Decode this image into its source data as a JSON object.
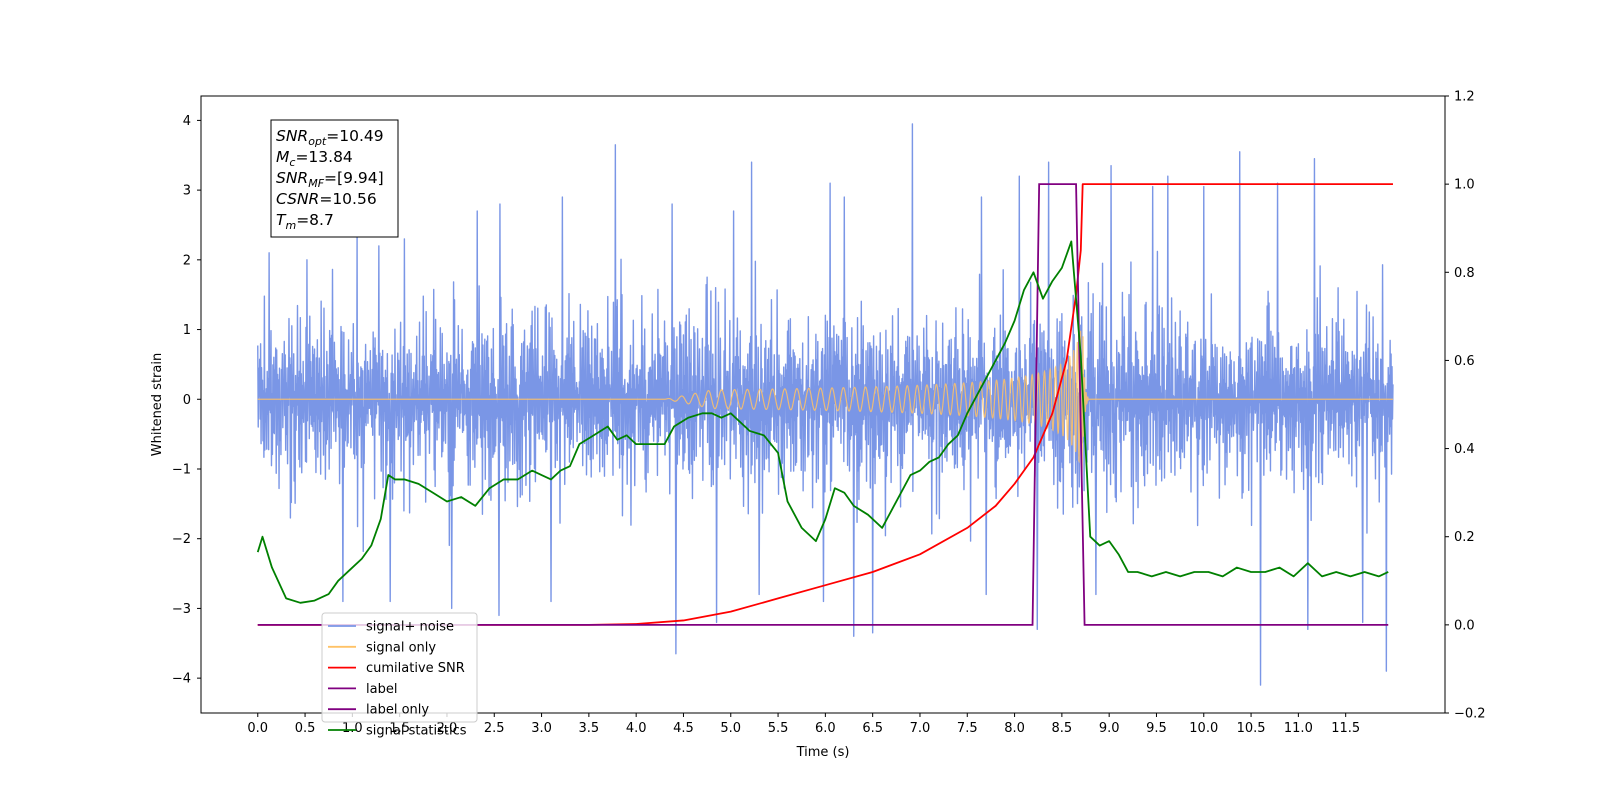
{
  "chart_data": {
    "type": "line",
    "xlabel": "Time (s)",
    "ylabel": "Whitened strain",
    "xlim": [
      -0.6,
      12.55
    ],
    "ylim": [
      -4.5,
      4.35
    ],
    "y2lim": [
      -0.2,
      1.2
    ],
    "x_ticks": [
      0.0,
      0.5,
      1.0,
      1.5,
      2.0,
      2.5,
      3.0,
      3.5,
      4.0,
      4.5,
      5.0,
      5.5,
      6.0,
      6.5,
      7.0,
      7.5,
      8.0,
      8.5,
      9.0,
      9.5,
      10.0,
      10.5,
      11.0,
      11.5
    ],
    "x_tick_labels": [
      "0.0",
      "0.5",
      "1.0",
      "1.5",
      "2.0",
      "2.5",
      "3.0",
      "3.5",
      "4.0",
      "4.5",
      "5.0",
      "5.5",
      "6.0",
      "6.5",
      "7.0",
      "7.5",
      "8.0",
      "8.5",
      "9.0",
      "9.5",
      "10.0",
      "10.5",
      "11.0",
      "11.5"
    ],
    "y_ticks": [
      -4,
      -3,
      -2,
      -1,
      0,
      1,
      2,
      3,
      4
    ],
    "y_tick_labels": [
      "−4",
      "−3",
      "−2",
      "−1",
      "0",
      "1",
      "2",
      "3",
      "4"
    ],
    "y2_ticks": [
      -0.2,
      0.0,
      0.2,
      0.4,
      0.6,
      0.8,
      1.0,
      1.2
    ],
    "y2_tick_labels": [
      "−0.2",
      "0.0",
      "0.2",
      "0.4",
      "0.6",
      "0.8",
      "1.0",
      "1.2"
    ],
    "grid": false,
    "legend_position": "lower-left",
    "info_box": [
      {
        "sym": "SNR",
        "sub": "opt",
        "rest": "=10.49"
      },
      {
        "sym": "M",
        "sub": "c",
        "rest": "=13.84"
      },
      {
        "sym": "SNR",
        "sub": "MF",
        "rest": "=[9.94]"
      },
      {
        "sym": "CSNR",
        "sub": "",
        "rest": "=10.56"
      },
      {
        "sym": "T",
        "sub": "m",
        "rest": "=8.7"
      }
    ],
    "series": [
      {
        "name": "signal+ noise",
        "color": "#7a96e6",
        "axis": "left",
        "x_range": [
          0.0,
          12.0
        ],
        "typical_amplitude": 1.5,
        "peaks": [
          [
            0.12,
            2.1
          ],
          [
            0.52,
            2.0
          ],
          [
            1.05,
            2.4
          ],
          [
            1.28,
            2.2
          ],
          [
            1.55,
            2.3
          ],
          [
            2.32,
            2.7
          ],
          [
            2.56,
            2.8
          ],
          [
            3.22,
            2.9
          ],
          [
            3.78,
            3.65
          ],
          [
            4.38,
            2.8
          ],
          [
            5.03,
            2.7
          ],
          [
            5.22,
            3.4
          ],
          [
            6.05,
            3.1
          ],
          [
            6.2,
            2.9
          ],
          [
            6.92,
            3.95
          ],
          [
            7.65,
            2.9
          ],
          [
            8.05,
            3.2
          ],
          [
            8.36,
            3.4
          ],
          [
            9.02,
            3.35
          ],
          [
            9.46,
            3.05
          ],
          [
            9.62,
            3.2
          ],
          [
            10.0,
            3.05
          ],
          [
            10.38,
            3.55
          ],
          [
            10.78,
            3.1
          ],
          [
            11.17,
            3.45
          ]
        ],
        "troughs": [
          [
            0.9,
            -2.9
          ],
          [
            1.4,
            -2.9
          ],
          [
            2.05,
            -3.0
          ],
          [
            2.55,
            -3.1
          ],
          [
            3.1,
            -2.9
          ],
          [
            4.42,
            -3.65
          ],
          [
            4.85,
            -3.2
          ],
          [
            5.3,
            -2.8
          ],
          [
            5.98,
            -2.9
          ],
          [
            6.3,
            -3.4
          ],
          [
            6.5,
            -3.35
          ],
          [
            7.7,
            -2.8
          ],
          [
            8.24,
            -3.3
          ],
          [
            8.86,
            -2.8
          ],
          [
            10.6,
            -4.1
          ],
          [
            11.1,
            -3.3
          ],
          [
            11.68,
            -3.2
          ],
          [
            11.93,
            -3.9
          ]
        ]
      },
      {
        "name": "signal only",
        "color": "#ffc266",
        "axis": "left",
        "chirp": {
          "start": 4.3,
          "merger": 8.72,
          "peak_amplitude": 1.2
        }
      },
      {
        "name": "cumilative SNR",
        "color": "#ff0000",
        "axis": "right",
        "x": [
          0.0,
          3.5,
          4.0,
          4.5,
          5.0,
          5.5,
          6.0,
          6.5,
          7.0,
          7.5,
          7.8,
          8.0,
          8.2,
          8.4,
          8.55,
          8.65,
          8.7,
          8.72,
          12.0
        ],
        "y": [
          0.0,
          0.0,
          0.002,
          0.01,
          0.03,
          0.06,
          0.09,
          0.12,
          0.16,
          0.22,
          0.27,
          0.32,
          0.38,
          0.48,
          0.6,
          0.75,
          0.85,
          1.0,
          1.0
        ]
      },
      {
        "name": "label",
        "color": "#800080",
        "axis": "right",
        "x": [
          0.0,
          8.19,
          8.26,
          8.65,
          8.74,
          11.95
        ],
        "y": [
          0.0,
          0.0,
          1.0,
          1.0,
          0.0,
          0.0
        ]
      },
      {
        "name": "label only",
        "color": "#800080",
        "axis": "right",
        "x": [],
        "y": []
      },
      {
        "name": "signal statistics",
        "color": "#008000",
        "axis": "right",
        "x": [
          0.0,
          0.05,
          0.15,
          0.3,
          0.45,
          0.6,
          0.75,
          0.85,
          1.0,
          1.1,
          1.2,
          1.3,
          1.38,
          1.45,
          1.55,
          1.7,
          1.85,
          2.0,
          2.15,
          2.3,
          2.45,
          2.6,
          2.75,
          2.9,
          3.0,
          3.1,
          3.2,
          3.3,
          3.4,
          3.55,
          3.7,
          3.8,
          3.9,
          4.0,
          4.15,
          4.3,
          4.4,
          4.55,
          4.7,
          4.8,
          4.9,
          5.0,
          5.1,
          5.2,
          5.35,
          5.5,
          5.6,
          5.75,
          5.9,
          6.0,
          6.1,
          6.2,
          6.3,
          6.45,
          6.6,
          6.7,
          6.8,
          6.9,
          7.0,
          7.1,
          7.2,
          7.3,
          7.4,
          7.5,
          7.6,
          7.7,
          7.8,
          7.9,
          8.0,
          8.1,
          8.2,
          8.3,
          8.4,
          8.5,
          8.6,
          8.7,
          8.8,
          8.9,
          9.0,
          9.1,
          9.2,
          9.3,
          9.45,
          9.6,
          9.75,
          9.9,
          10.05,
          10.2,
          10.35,
          10.5,
          10.65,
          10.8,
          10.95,
          11.1,
          11.25,
          11.4,
          11.55,
          11.7,
          11.85,
          11.95
        ],
        "y": [
          0.165,
          0.2,
          0.13,
          0.06,
          0.05,
          0.055,
          0.07,
          0.1,
          0.13,
          0.15,
          0.18,
          0.24,
          0.34,
          0.33,
          0.33,
          0.32,
          0.3,
          0.28,
          0.29,
          0.27,
          0.31,
          0.33,
          0.33,
          0.35,
          0.34,
          0.33,
          0.35,
          0.36,
          0.41,
          0.43,
          0.45,
          0.42,
          0.43,
          0.41,
          0.41,
          0.41,
          0.45,
          0.47,
          0.48,
          0.48,
          0.47,
          0.48,
          0.46,
          0.44,
          0.43,
          0.39,
          0.28,
          0.22,
          0.19,
          0.24,
          0.31,
          0.3,
          0.27,
          0.25,
          0.22,
          0.26,
          0.3,
          0.34,
          0.35,
          0.37,
          0.38,
          0.41,
          0.43,
          0.48,
          0.52,
          0.56,
          0.6,
          0.64,
          0.69,
          0.76,
          0.8,
          0.74,
          0.78,
          0.81,
          0.87,
          0.61,
          0.2,
          0.18,
          0.19,
          0.16,
          0.12,
          0.12,
          0.11,
          0.12,
          0.11,
          0.12,
          0.12,
          0.11,
          0.13,
          0.12,
          0.12,
          0.13,
          0.11,
          0.14,
          0.11,
          0.12,
          0.11,
          0.12,
          0.11,
          0.12
        ]
      }
    ]
  }
}
